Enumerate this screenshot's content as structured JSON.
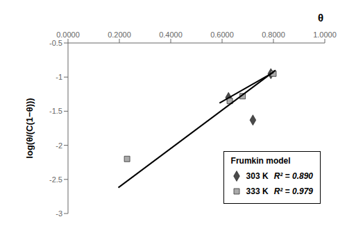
{
  "chart_data": {
    "type": "scatter",
    "x_label": "θ",
    "y_label": "log(θ/(C(1−θ)))",
    "xlim": [
      0.0,
      1.0
    ],
    "ylim": [
      -3.0,
      -0.5
    ],
    "xticks": [
      {
        "value": 0.0,
        "label": "0.0000"
      },
      {
        "value": 0.2,
        "label": "0.2000"
      },
      {
        "value": 0.4,
        "label": "0.4000"
      },
      {
        "value": 0.6,
        "label": "0.6000"
      },
      {
        "value": 0.8,
        "label": "0.8000"
      },
      {
        "value": 1.0,
        "label": "1.0000"
      }
    ],
    "yticks": [
      -3,
      -2.5,
      -2,
      -1.5,
      -1,
      -0.5
    ],
    "legend": "lower right",
    "legend_title": "Frumkin model",
    "series": [
      {
        "name": "303 K",
        "annotation": "R² = 0.890",
        "type": "scatter",
        "marker": "diamond",
        "color": "#4a4a4a",
        "x": [
          0.625,
          0.72,
          0.79
        ],
        "values": [
          -1.3,
          -1.63,
          -0.95
        ]
      },
      {
        "name": "333 K",
        "annotation": "R² = 0.979",
        "type": "scatter",
        "marker": "square",
        "color": "#aaaaaa",
        "x": [
          0.23,
          0.63,
          0.68,
          0.8
        ],
        "values": [
          -2.2,
          -1.35,
          -1.28,
          -0.95
        ]
      },
      {
        "type": "line",
        "color": "#000000",
        "x": [
          0.59,
          0.8
        ],
        "values": [
          -1.38,
          -0.93
        ]
      },
      {
        "type": "line",
        "color": "#000000",
        "x": [
          0.196,
          0.808
        ],
        "values": [
          -2.62,
          -0.9
        ]
      }
    ]
  }
}
